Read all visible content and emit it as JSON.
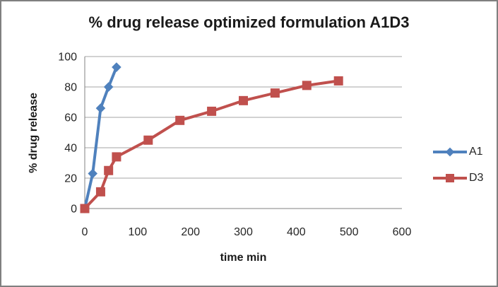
{
  "chart_data": {
    "type": "line",
    "title": "% drug release optimized formulation A1D3",
    "xlabel": "time min",
    "ylabel": "% drug release",
    "xlim": [
      0,
      600
    ],
    "ylim": [
      0,
      100
    ],
    "x_ticks": [
      0,
      100,
      200,
      300,
      400,
      500,
      600
    ],
    "y_ticks": [
      0,
      20,
      40,
      60,
      80,
      100
    ],
    "grid": "horizontal",
    "legend_position": "right",
    "series": [
      {
        "name": "A1",
        "color": "#4F81BD",
        "marker": "diamond",
        "x": [
          0,
          15,
          30,
          45,
          60
        ],
        "y": [
          0,
          23,
          66,
          80,
          93
        ]
      },
      {
        "name": "D3",
        "color": "#C0504D",
        "marker": "square",
        "x": [
          0,
          30,
          45,
          60,
          120,
          180,
          240,
          300,
          360,
          420,
          480
        ],
        "y": [
          0,
          11,
          25,
          34,
          45,
          58,
          64,
          71,
          76,
          81,
          84
        ]
      }
    ]
  },
  "colors": {
    "background": "#FFFFFF",
    "border": "#808080",
    "axis": "#808080",
    "gridline": "#A6A6A6",
    "tick_text": "#262626",
    "title_text": "#1A1A1A"
  }
}
